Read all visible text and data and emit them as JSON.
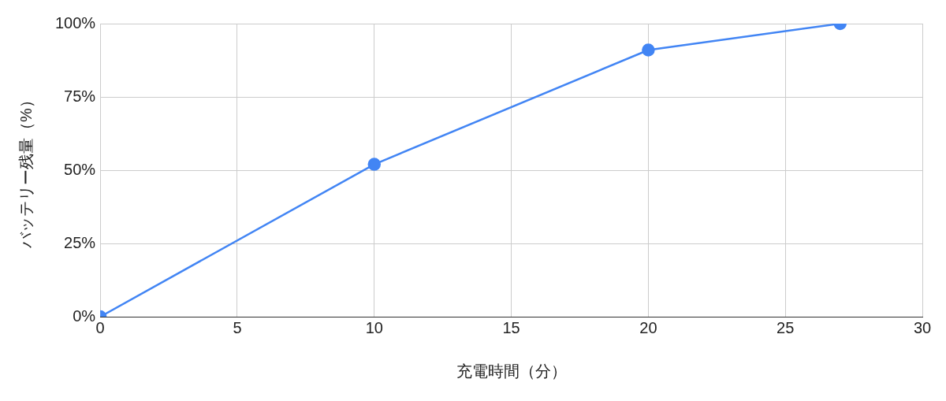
{
  "chart_data": {
    "type": "line",
    "xlabel": "充電時間（分）",
    "ylabel": "バッテリー残量（%）",
    "x": [
      0,
      10,
      20,
      27
    ],
    "series": [
      {
        "color": "#4285f4",
        "values": [
          0,
          52,
          91,
          100
        ]
      }
    ],
    "xlim": [
      0,
      30
    ],
    "xticks": [
      0,
      5,
      10,
      15,
      20,
      25,
      30
    ],
    "ylim": [
      0,
      100
    ],
    "yticks": [
      {
        "value": 0,
        "label": "0%"
      },
      {
        "value": 25,
        "label": "25%"
      },
      {
        "value": 50,
        "label": "50%"
      },
      {
        "value": 75,
        "label": "75%"
      },
      {
        "value": 100,
        "label": "100%"
      }
    ],
    "grid": true,
    "legend": false,
    "marker": "circle",
    "line_style": "solid"
  }
}
